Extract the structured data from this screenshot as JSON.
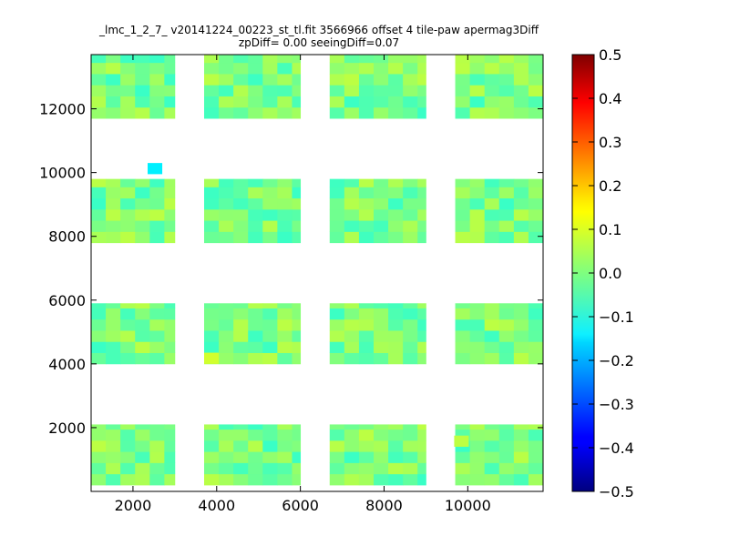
{
  "chart_data": {
    "type": "heatmap",
    "title_line1": "_lmc_1_2_7_ v20141224_00223_st_tl.fit 3566966 offset 4 tile-paw apermag3Diff",
    "title_line2": "zpDiff= 0.00 seeingDiff=0.07",
    "xlim": [
      1000,
      11800
    ],
    "ylim": [
      0,
      13700
    ],
    "x_ticks": [
      2000,
      4000,
      6000,
      8000,
      10000
    ],
    "y_ticks": [
      2000,
      4000,
      6000,
      8000,
      10000,
      12000
    ],
    "colorbar": {
      "vmin": -0.5,
      "vmax": 0.5,
      "colormap": "jet",
      "ticks": [
        "0.5",
        "0.4",
        "0.3",
        "0.2",
        "0.1",
        "0.0",
        "−0.1",
        "−0.2",
        "−0.3",
        "−0.4",
        "−0.5"
      ]
    },
    "detector_grid": {
      "columns": [
        {
          "x0": 1000,
          "x1": 3000
        },
        {
          "x0": 3700,
          "x1": 6000
        },
        {
          "x0": 6700,
          "x1": 9000
        },
        {
          "x0": 9700,
          "x1": 11800
        }
      ],
      "rows": [
        {
          "y0": 200,
          "y1": 2100
        },
        {
          "y0": 4000,
          "y1": 5900
        },
        {
          "y0": 7800,
          "y1": 9800
        },
        {
          "y0": 11700,
          "y1": 13700
        }
      ],
      "cell_size": 350,
      "typical_value_range": [
        -0.07,
        0.06
      ]
    },
    "outliers": [
      {
        "x": 2525,
        "y": 10125,
        "value": -0.14,
        "size": 350
      },
      {
        "x": 9850,
        "y": 1575,
        "value": 0.06,
        "size": 350
      },
      {
        "x": 3875,
        "y": 4175,
        "value": 0.08,
        "size": 350
      }
    ]
  }
}
